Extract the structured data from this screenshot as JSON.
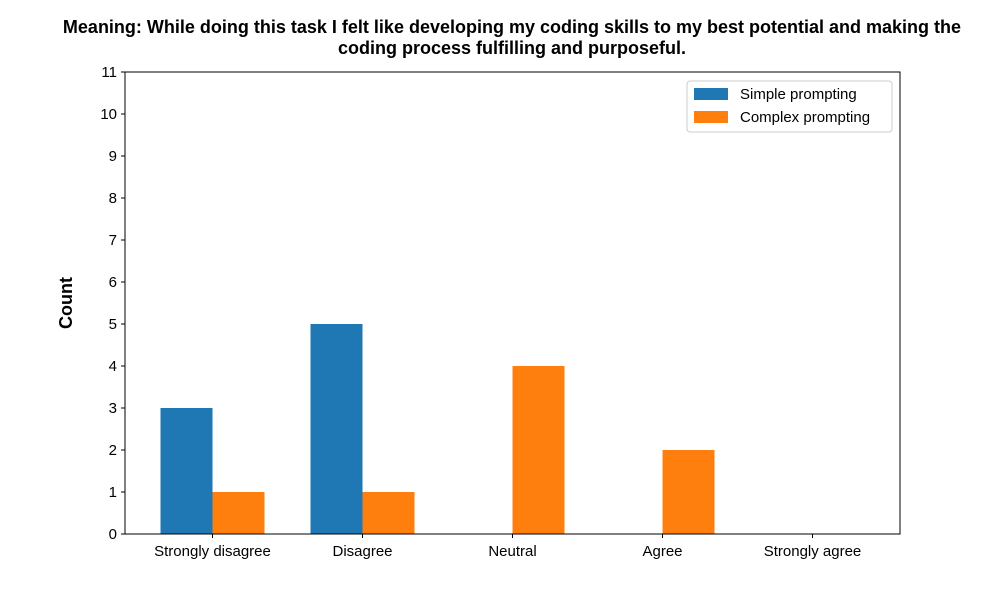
{
  "chart_data": {
    "type": "bar",
    "title_lines": [
      "Meaning: While doing this task I felt like developing my coding skills to my best potential and making the",
      "coding process fulfilling and purposeful."
    ],
    "xlabel": "",
    "ylabel": "Count",
    "categories": [
      "Strongly disagree",
      "Disagree",
      "Neutral",
      "Agree",
      "Strongly agree"
    ],
    "series": [
      {
        "name": "Simple prompting",
        "color": "#1f77b4",
        "values": [
          3,
          5,
          0,
          0,
          0
        ]
      },
      {
        "name": "Complex prompting",
        "color": "#ff7f0e",
        "values": [
          1,
          1,
          4,
          2,
          0
        ]
      }
    ],
    "ylim": [
      0,
      11
    ],
    "yticks": [
      0,
      1,
      2,
      3,
      4,
      5,
      6,
      7,
      8,
      9,
      10,
      11
    ],
    "grid": false,
    "legend_position": "top-right"
  }
}
